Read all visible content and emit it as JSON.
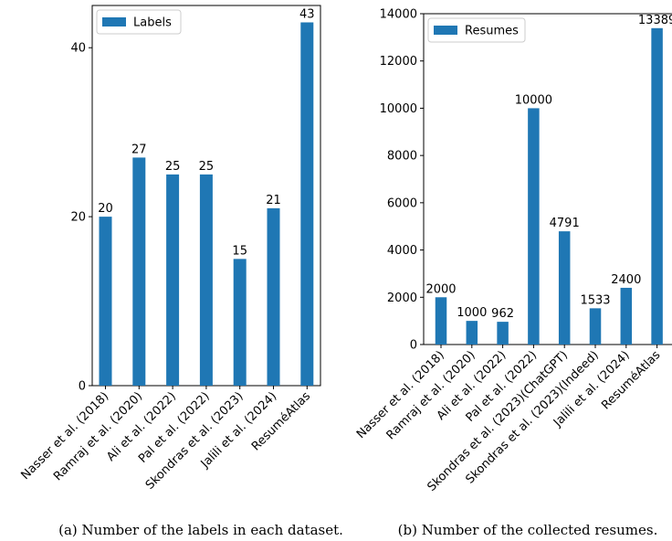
{
  "captions": {
    "left": "(a) Number of the labels in each dataset.",
    "right": "(b) Number of the collected resumes."
  },
  "chart_data": [
    {
      "type": "bar",
      "categories": [
        "Nasser et al. (2018)",
        "Ramraj et al. (2020)",
        "Ali et al. (2022)",
        "Pal et al. (2022)",
        "Skondras et al. (2023)",
        "Jalili et al. (2024)",
        "ResuméAtlas"
      ],
      "series": [
        {
          "name": "Labels",
          "values": [
            20,
            27,
            25,
            25,
            15,
            21,
            43
          ],
          "color": "#1f77b4"
        }
      ],
      "ylim": [
        0,
        45
      ],
      "yticks": [
        0,
        20,
        40
      ],
      "legend": "top-left",
      "grid": false
    },
    {
      "type": "bar",
      "categories": [
        "Nasser et al. (2018)",
        "Ramraj et al. (2020)",
        "Ali et al. (2022)",
        "Pal et al. (2022)",
        "Skondras et al. (2023)(ChatGPT)",
        "Skondras et al. (2023)(Indeed)",
        "Jalili et al. (2024)",
        "ResuméAtlas"
      ],
      "series": [
        {
          "name": "Resumes",
          "values": [
            2000,
            1000,
            962,
            10000,
            4791,
            1533,
            2400,
            13389
          ],
          "color": "#1f77b4"
        }
      ],
      "ylim": [
        0,
        14000
      ],
      "yticks": [
        0,
        2000,
        4000,
        6000,
        8000,
        10000,
        12000,
        14000
      ],
      "legend": "top-left",
      "grid": false
    }
  ]
}
